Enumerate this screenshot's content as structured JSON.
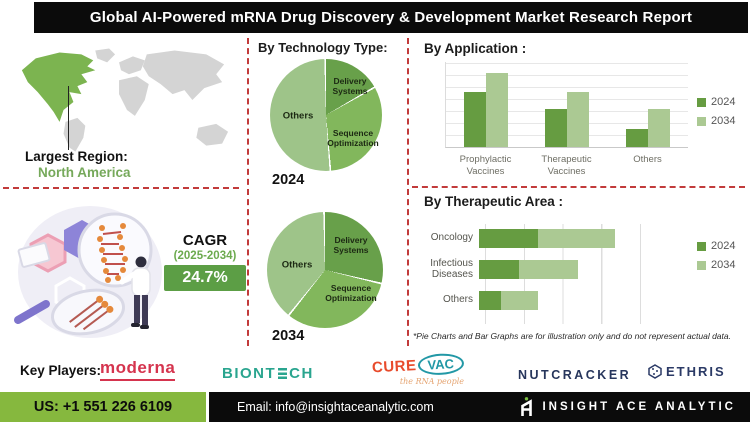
{
  "title": "Global AI-Powered mRNA Drug Discovery & Development Market Research Report",
  "left": {
    "largest_region_label": "Largest Region:",
    "largest_region_value": "North America",
    "cagr_label": "CAGR",
    "cagr_period": "(2025-2034)",
    "cagr_value": "24.7%"
  },
  "footnote": "*Pie Charts and Bar Graphs are for illustration only and do not represent actual data.",
  "key_players": {
    "label": "Key Players:",
    "moderna": "moderna",
    "biontech_pre": "BIONT",
    "biontech_post": "CH",
    "curevac_cure": "CURE",
    "curevac_vac": "VAC",
    "curevac_tagline": "the RNA people",
    "nutcracker": "NUTCRACKER",
    "ethris": "ETHRIS"
  },
  "footer": {
    "phone": "US: +1 551 226 6109",
    "email": "Email: info@insightaceanalytic.com",
    "brand": "INSIGHT ACE ANALYTIC"
  },
  "colors": {
    "accent_green": "#86b83e",
    "cagr_box_green": "#5c9e45",
    "map_highlight_green": "#7cb450",
    "series_2024": "#669c41",
    "series_2034": "#abc993",
    "dashed_divider_red": "#c23b3b",
    "title_bar_black": "#0b0b0b"
  },
  "chart_data": [
    {
      "type": "pie",
      "title": "By Technology Type:",
      "year": "2024",
      "labels": [
        "Delivery Systems",
        "Sequence Optimization",
        "Others"
      ],
      "values": [
        17,
        32,
        51
      ],
      "colors": [
        "#68a04a",
        "#82b75c",
        "#9ec489"
      ]
    },
    {
      "type": "pie",
      "title": "By Technology Type:",
      "year": "2034",
      "labels": [
        "Delivery Systems",
        "Sequence Optimization",
        "Others"
      ],
      "values": [
        29,
        32,
        39
      ],
      "colors": [
        "#68a04a",
        "#82b75c",
        "#9ec489"
      ]
    },
    {
      "type": "grouped-bar",
      "title": "By Application :",
      "categories": [
        "Prophylactic Vaccines",
        "Therapeutic Vaccines",
        "Others"
      ],
      "series": [
        {
          "name": "2024",
          "values": [
            65,
            45,
            21
          ]
        },
        {
          "name": "2034",
          "values": [
            88,
            66,
            45
          ]
        }
      ],
      "ylim": [
        0,
        100
      ],
      "grid": true,
      "legend_position": "right",
      "colors": [
        "#669c41",
        "#abc993"
      ]
    },
    {
      "type": "stacked-bar-horizontal",
      "title": "By Therapeutic Area :",
      "categories": [
        "Oncology",
        "Infectious Diseases",
        "Others"
      ],
      "series": [
        {
          "name": "2024",
          "values": [
            38,
            26,
            14
          ]
        },
        {
          "name": "2034",
          "values": [
            50,
            38,
            24
          ]
        }
      ],
      "xlim": [
        0,
        100
      ],
      "grid": true,
      "legend_position": "right",
      "colors": [
        "#669c41",
        "#abc993"
      ]
    }
  ]
}
